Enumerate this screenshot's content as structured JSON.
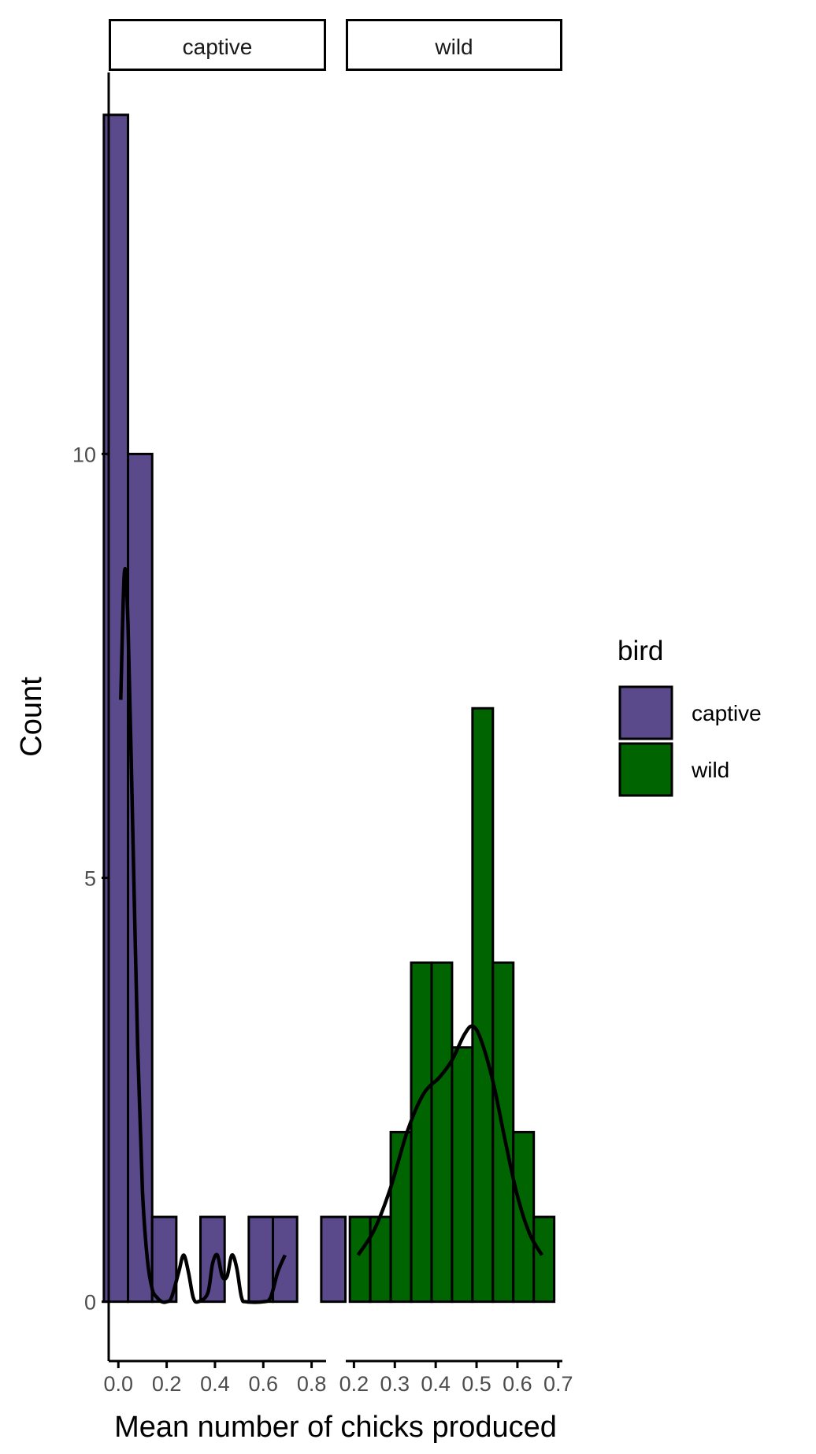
{
  "chart_data": {
    "type": "bar",
    "subtype": "faceted histogram with density overlay",
    "xlabel": "Mean number of chicks produced",
    "ylabel": "Count",
    "y_ticks": [
      0,
      5,
      10
    ],
    "ylim": [
      -0.7,
      14.5
    ],
    "grid": false,
    "legend": {
      "title": "bird",
      "placement": "right",
      "entries": [
        {
          "label": "captive",
          "color": "#5b4a8b"
        },
        {
          "label": "wild",
          "color": "#006400"
        }
      ]
    },
    "facets": [
      {
        "label": "captive",
        "color": "#5b4a8b",
        "x_ticks": [
          "0.0",
          "0.2",
          "0.4",
          "0.6",
          "0.8"
        ],
        "x_tick_values": [
          0.0,
          0.2,
          0.4,
          0.6,
          0.8
        ],
        "xlim": [
          -0.04,
          0.86
        ],
        "bin_width": 0.1,
        "bins": [
          {
            "x": -0.01,
            "count": 14
          },
          {
            "x": 0.09,
            "count": 10
          },
          {
            "x": 0.19,
            "count": 1
          },
          {
            "x": 0.29,
            "count": 0
          },
          {
            "x": 0.39,
            "count": 1
          },
          {
            "x": 0.49,
            "count": 0
          },
          {
            "x": 0.59,
            "count": 1
          },
          {
            "x": 0.69,
            "count": 1
          },
          {
            "x": 0.79,
            "count": 0
          },
          {
            "x": 0.89,
            "count": 1
          }
        ],
        "density_curve": [
          [
            0.01,
            7.1
          ],
          [
            0.025,
            8.6
          ],
          [
            0.04,
            8.0
          ],
          [
            0.06,
            5.5
          ],
          [
            0.08,
            3.0
          ],
          [
            0.1,
            1.3
          ],
          [
            0.12,
            0.5
          ],
          [
            0.14,
            0.15
          ],
          [
            0.16,
            0.05
          ],
          [
            0.18,
            0.0
          ],
          [
            0.2,
            0.0
          ],
          [
            0.22,
            0.05
          ],
          [
            0.25,
            0.35
          ],
          [
            0.27,
            0.55
          ],
          [
            0.29,
            0.35
          ],
          [
            0.31,
            0.05
          ],
          [
            0.33,
            0.0
          ],
          [
            0.37,
            0.1
          ],
          [
            0.39,
            0.45
          ],
          [
            0.41,
            0.55
          ],
          [
            0.43,
            0.3
          ],
          [
            0.45,
            0.3
          ],
          [
            0.47,
            0.55
          ],
          [
            0.49,
            0.4
          ],
          [
            0.51,
            0.05
          ],
          [
            0.53,
            0.0
          ],
          [
            0.6,
            0.0
          ],
          [
            0.63,
            0.05
          ],
          [
            0.66,
            0.35
          ],
          [
            0.69,
            0.55
          ]
        ]
      },
      {
        "label": "wild",
        "color": "#006400",
        "x_ticks": [
          "0.2",
          "0.3",
          "0.4",
          "0.5",
          "0.6",
          "0.7"
        ],
        "x_tick_values": [
          0.2,
          0.3,
          0.4,
          0.5,
          0.6,
          0.7
        ],
        "xlim": [
          0.18,
          0.71
        ],
        "bin_width": 0.05,
        "bins": [
          {
            "x": 0.215,
            "count": 1
          },
          {
            "x": 0.265,
            "count": 1
          },
          {
            "x": 0.315,
            "count": 2
          },
          {
            "x": 0.365,
            "count": 4
          },
          {
            "x": 0.415,
            "count": 4
          },
          {
            "x": 0.465,
            "count": 3
          },
          {
            "x": 0.515,
            "count": 7
          },
          {
            "x": 0.565,
            "count": 4
          },
          {
            "x": 0.615,
            "count": 2
          },
          {
            "x": 0.665,
            "count": 1
          }
        ],
        "density_curve": [
          [
            0.21,
            0.55
          ],
          [
            0.25,
            0.85
          ],
          [
            0.29,
            1.35
          ],
          [
            0.33,
            2.0
          ],
          [
            0.37,
            2.45
          ],
          [
            0.41,
            2.65
          ],
          [
            0.44,
            2.85
          ],
          [
            0.47,
            3.15
          ],
          [
            0.49,
            3.25
          ],
          [
            0.51,
            3.1
          ],
          [
            0.54,
            2.6
          ],
          [
            0.57,
            1.9
          ],
          [
            0.6,
            1.25
          ],
          [
            0.63,
            0.8
          ],
          [
            0.66,
            0.55
          ]
        ]
      }
    ]
  }
}
